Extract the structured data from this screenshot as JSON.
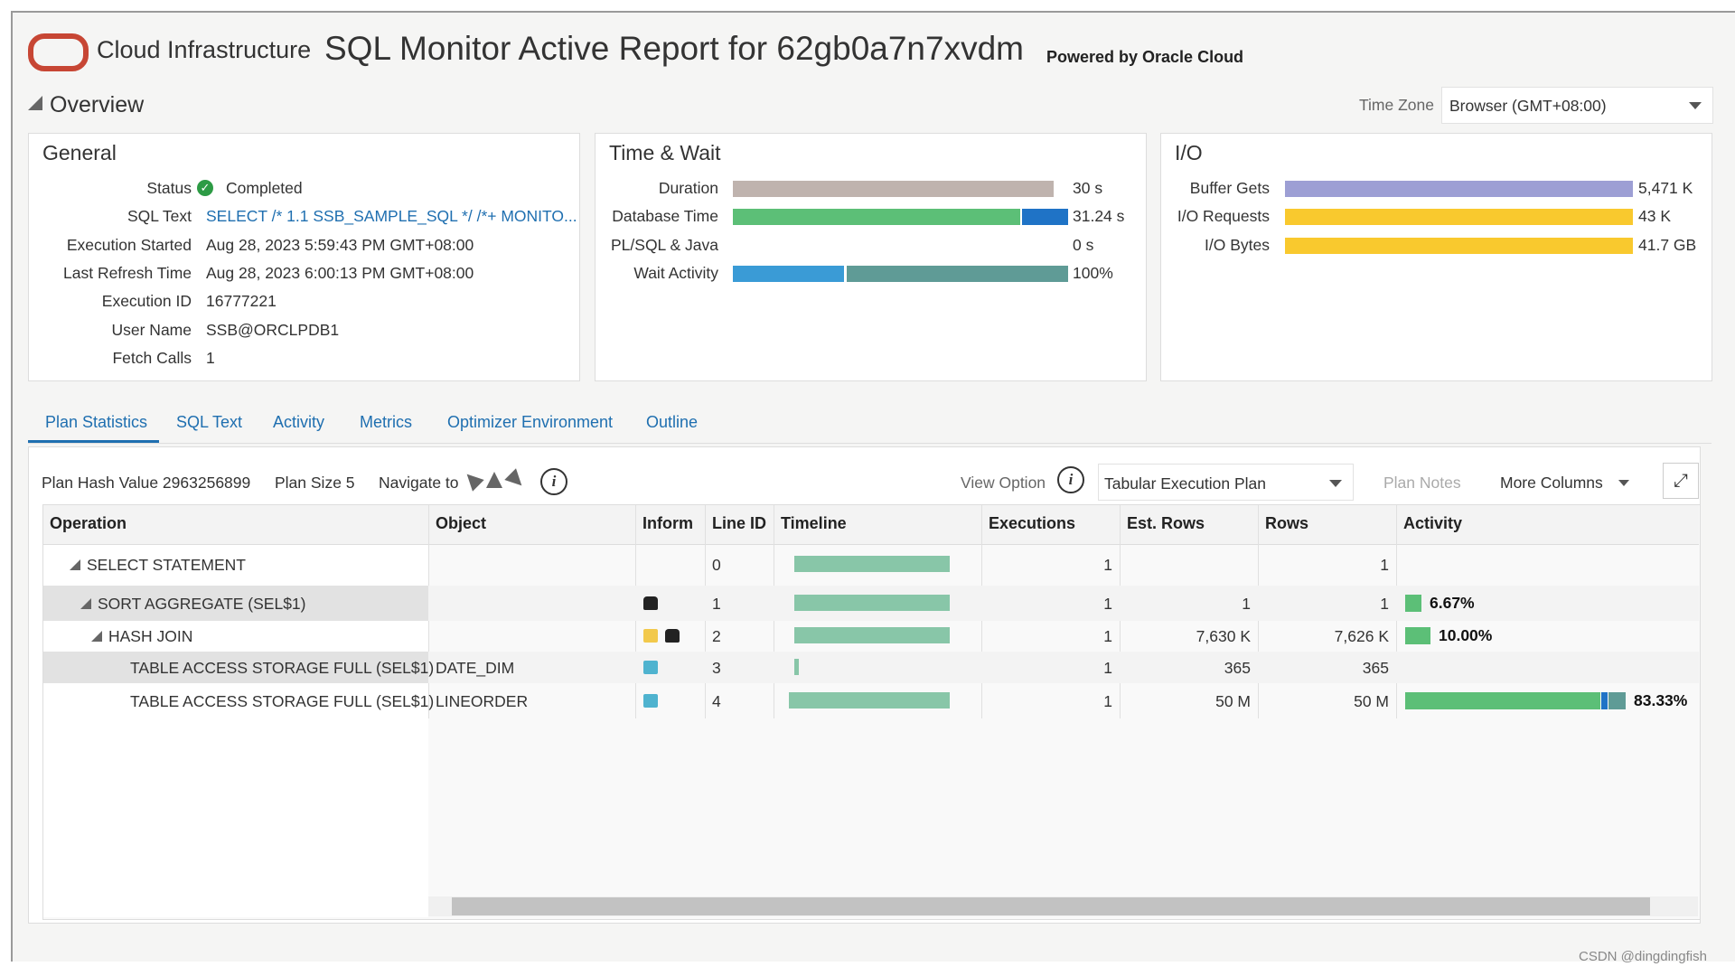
{
  "header": {
    "brand": "Cloud Infrastructure",
    "title": "SQL Monitor Active Report for 62gb0a7n7xvdm",
    "powered_by": "Powered by Oracle Cloud"
  },
  "overview": {
    "title": "Overview",
    "time_zone_label": "Time Zone",
    "time_zone": "Browser (GMT+08:00)"
  },
  "general": {
    "title": "General",
    "rows": [
      {
        "label": "Status",
        "value": "Completed"
      },
      {
        "label": "SQL Text",
        "value": "SELECT /* 1.1 SSB_SAMPLE_SQL */ /*+ MONITO..."
      },
      {
        "label": "Execution Started",
        "value": "Aug 28, 2023 5:59:43 PM GMT+08:00"
      },
      {
        "label": "Last Refresh Time",
        "value": "Aug 28, 2023 6:00:13 PM GMT+08:00"
      },
      {
        "label": "Execution ID",
        "value": "16777221"
      },
      {
        "label": "User Name",
        "value": "SSB@ORCLPDB1"
      },
      {
        "label": "Fetch Calls",
        "value": "1"
      }
    ]
  },
  "time_wait": {
    "title": "Time & Wait",
    "rows": [
      {
        "label": "Duration",
        "value": "30 s"
      },
      {
        "label": "Database Time",
        "value": "31.24 s"
      },
      {
        "label": "PL/SQL & Java",
        "value": "0 s"
      },
      {
        "label": "Wait Activity",
        "value": "100%"
      }
    ]
  },
  "io": {
    "title": "I/O",
    "rows": [
      {
        "label": "Buffer Gets",
        "value": "5,471 K"
      },
      {
        "label": "I/O Requests",
        "value": "43 K"
      },
      {
        "label": "I/O Bytes",
        "value": "41.7 GB"
      }
    ]
  },
  "tabs": [
    "Plan Statistics",
    "SQL Text",
    "Activity",
    "Metrics",
    "Optimizer Environment",
    "Outline"
  ],
  "plan": {
    "plan_hash_value": "Plan Hash Value 2963256899",
    "plan_size": "Plan Size 5",
    "navigate_to": "Navigate to",
    "view_option_label": "View Option",
    "view_option": "Tabular Execution Plan",
    "plan_notes": "Plan Notes",
    "more_columns": "More Columns"
  },
  "table": {
    "columns": [
      "Operation",
      "Object",
      "Inform",
      "Line ID",
      "Timeline",
      "Executions",
      "Est. Rows",
      "Rows",
      "Activity"
    ],
    "rows": [
      {
        "operation": "SELECT STATEMENT",
        "line_id": 0,
        "executions": 1,
        "rows": 1
      },
      {
        "operation": "SORT AGGREGATE (SEL$1)",
        "line_id": 1,
        "executions": 1,
        "est_rows": 1,
        "rows": 1,
        "activity": "6.67%"
      },
      {
        "operation": "HASH JOIN",
        "line_id": 2,
        "executions": 1,
        "est_rows": "7,630 K",
        "rows": "7,626 K",
        "activity": "10.00%"
      },
      {
        "operation": "TABLE ACCESS STORAGE FULL (SEL$1)",
        "object": "DATE_DIM",
        "line_id": 3,
        "executions": 1,
        "est_rows": 365,
        "rows": 365
      },
      {
        "operation": "TABLE ACCESS STORAGE FULL (SEL$1)",
        "object": "LINEORDER",
        "line_id": 4,
        "executions": 1,
        "est_rows": "50 M",
        "rows": "50 M",
        "activity": "83.33%"
      }
    ]
  },
  "watermark": "CSDN @dingdingfish"
}
